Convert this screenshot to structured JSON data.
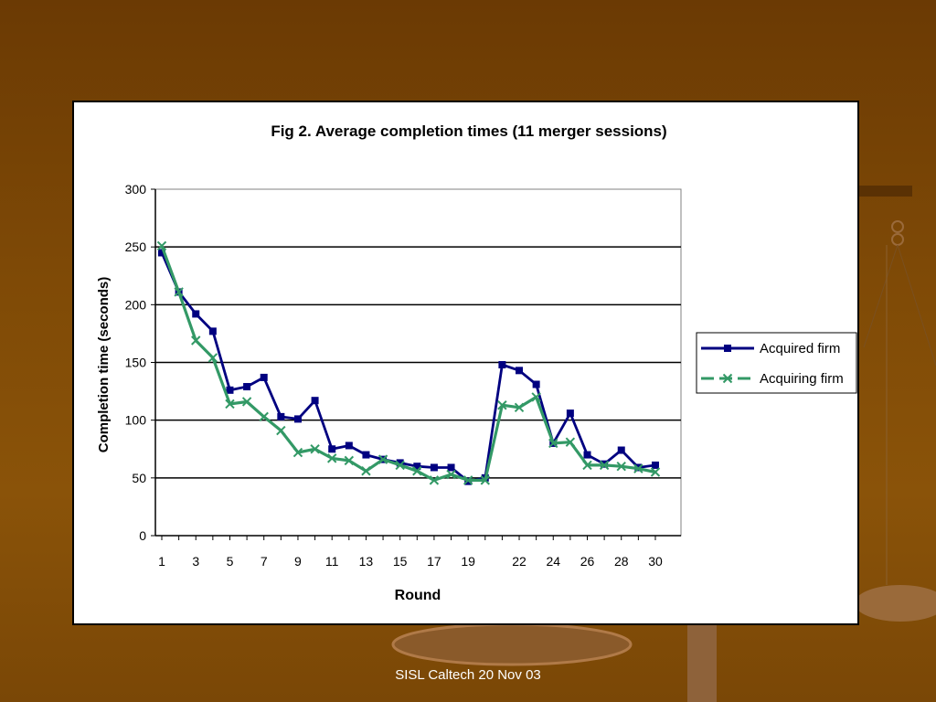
{
  "footer": "SISL Caltech 20 Nov 03",
  "colors": {
    "background": "#7a4706",
    "acquired": "#000080",
    "acquiring": "#339966"
  },
  "chart_data": {
    "type": "line",
    "title": "Fig 2. Average completion times (11 merger sessions)",
    "xlabel": "Round",
    "ylabel": "Completion time (seconds)",
    "ylim": [
      0,
      300
    ],
    "yticks": [
      0,
      50,
      100,
      150,
      200,
      250,
      300
    ],
    "xlim": [
      1,
      30
    ],
    "xtick_labels": [
      1,
      3,
      5,
      7,
      9,
      11,
      13,
      15,
      17,
      19,
      22,
      24,
      26,
      28,
      30
    ],
    "grid": "horizontal",
    "legend_position": "right",
    "series": [
      {
        "name": "Acquired firm",
        "color": "#000080",
        "marker": "square",
        "x": [
          1,
          2,
          3,
          4,
          5,
          6,
          7,
          8,
          9,
          10,
          11,
          12,
          13,
          14,
          15,
          16,
          17,
          18,
          19,
          20,
          21,
          22,
          23,
          24,
          25,
          26,
          27,
          28,
          29,
          30
        ],
        "y": [
          245,
          211,
          192,
          177,
          126,
          129,
          137,
          103,
          101,
          117,
          75,
          78,
          70,
          66,
          63,
          60,
          59,
          59,
          47,
          50,
          148,
          143,
          131,
          80,
          106,
          70,
          62,
          74,
          59,
          61
        ]
      },
      {
        "name": "Acquiring firm",
        "color": "#339966",
        "marker": "x",
        "x": [
          1,
          2,
          3,
          4,
          5,
          6,
          7,
          8,
          9,
          10,
          11,
          12,
          13,
          14,
          15,
          16,
          17,
          18,
          19,
          20,
          21,
          22,
          23,
          24,
          25,
          26,
          27,
          28,
          29,
          30
        ],
        "y": [
          251,
          211,
          169,
          154,
          114,
          116,
          103,
          91,
          72,
          75,
          67,
          65,
          56,
          66,
          61,
          56,
          48,
          53,
          48,
          48,
          113,
          111,
          120,
          80,
          81,
          61,
          61,
          60,
          58,
          55
        ]
      }
    ]
  }
}
